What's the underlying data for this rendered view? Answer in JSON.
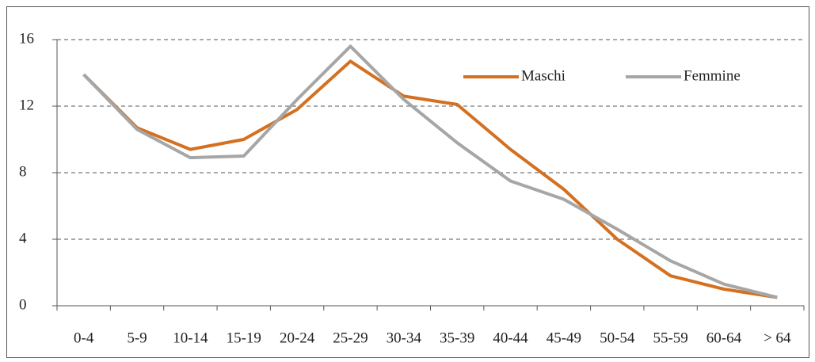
{
  "chart_data": {
    "type": "line",
    "categories": [
      "0-4",
      "5-9",
      "10-14",
      "15-19",
      "20-24",
      "25-29",
      "30-34",
      "35-39",
      "40-44",
      "45-49",
      "50-54",
      "55-59",
      "60-64",
      "> 64"
    ],
    "series": [
      {
        "name": "Maschi",
        "color": "#d4701f",
        "values": [
          13.9,
          10.7,
          9.4,
          10.0,
          11.8,
          14.7,
          12.6,
          12.1,
          9.4,
          7.0,
          4.0,
          1.8,
          1.0,
          0.5
        ]
      },
      {
        "name": "Femmine",
        "color": "#a6a6a6",
        "values": [
          13.9,
          10.6,
          8.9,
          9.0,
          12.4,
          15.6,
          12.4,
          9.8,
          7.5,
          6.4,
          4.6,
          2.7,
          1.3,
          0.5
        ]
      }
    ],
    "ylim": [
      0,
      16
    ],
    "yticks": [
      0,
      4,
      8,
      12,
      16
    ],
    "grid": true,
    "legend": "top-right"
  }
}
